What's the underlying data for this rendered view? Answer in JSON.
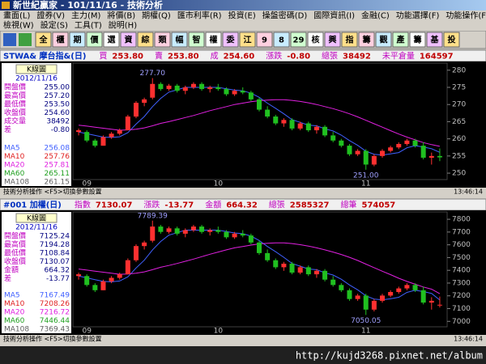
{
  "window": {
    "title": "新世紀贏家 - 101/11/16 - 技術分析"
  },
  "menu": [
    [
      "畫面(L)",
      "證券(V)",
      "主力(M)",
      "將價(B)",
      "期權(Q)",
      "匯市利率(R)",
      "投資(E)",
      "操盤密碼(D)",
      "國際資訊(I)",
      "金融(C)",
      "功能選擇(F)",
      "功能操作(F)"
    ],
    [
      "檢視(W)",
      "設定(S)",
      "工具(T)",
      "說明(H)"
    ]
  ],
  "toolbar": [
    "全",
    "櫃",
    "期",
    "價",
    "選",
    "資",
    "綜",
    "類",
    "幅",
    "智",
    "權",
    "委",
    "江",
    "9",
    "8",
    "29",
    "核",
    "興",
    "指",
    "籌",
    "觀",
    "產",
    "籌",
    "基",
    "投"
  ],
  "panels": [
    {
      "name": "STWA& 摩台指&(日)",
      "quotes": [
        [
          "買",
          "253.80"
        ],
        [
          "賣",
          "253.80"
        ],
        [
          "成",
          "254.60"
        ],
        [
          "漲跌",
          "-0.80"
        ],
        [
          "總張",
          "38492"
        ],
        [
          "未平倉量",
          "164597"
        ]
      ],
      "info": {
        "title": "K線圖",
        "date": "2012/11/16",
        "rows": [
          [
            "開盤價",
            "255.00"
          ],
          [
            "最高價",
            "257.20"
          ],
          [
            "最低價",
            "253.50"
          ],
          [
            "收盤價",
            "254.60"
          ],
          [
            "成交量",
            "38492"
          ],
          [
            "差",
            "-0.80"
          ]
        ],
        "ma_rows": [
          {
            "label": "MA5",
            "value": "256.08",
            "color": "#4060ff"
          },
          {
            "label": "MA10",
            "value": "257.76",
            "color": "#e02020"
          },
          {
            "label": "MA20",
            "value": "257.81",
            "color": "#e020e0"
          },
          {
            "label": "MA60",
            "value": "265.11",
            "color": "#20a020"
          },
          {
            "label": "MA108",
            "value": "261.15",
            "color": "#606060"
          }
        ]
      },
      "chart": {
        "type": "candlestick",
        "categories": [
          null,
          "09",
          null,
          null,
          null,
          null,
          null,
          null,
          null,
          null,
          null,
          null,
          null,
          null,
          null,
          null,
          null,
          "10",
          null,
          null,
          null,
          null,
          null,
          null,
          null,
          null,
          null,
          null,
          null,
          null,
          null,
          null,
          null,
          null,
          null,
          "11",
          null,
          null,
          null,
          null,
          null,
          null,
          null,
          null,
          null
        ],
        "candles": [
          [
            262,
            263,
            261,
            262.5
          ],
          [
            262,
            262.5,
            259,
            259.5
          ],
          [
            259.5,
            260,
            257.5,
            258
          ],
          [
            258,
            261,
            258,
            260.5
          ],
          [
            260.5,
            262,
            260,
            261.5
          ],
          [
            261.5,
            263,
            261,
            262.5
          ],
          [
            262.5,
            267,
            262.5,
            266.5
          ],
          [
            266.5,
            271,
            266,
            270.5
          ],
          [
            270.5,
            272,
            269.5,
            271.5
          ],
          [
            272,
            277.7,
            271.5,
            276
          ],
          [
            276,
            276.5,
            274,
            274.5
          ],
          [
            274.5,
            276,
            274,
            275.5
          ],
          [
            275.5,
            276,
            273.5,
            274
          ],
          [
            274,
            275.5,
            273,
            275
          ],
          [
            275,
            276.5,
            274.5,
            276
          ],
          [
            276,
            276.5,
            274,
            274.5
          ],
          [
            274.5,
            275.5,
            273.5,
            275
          ],
          [
            275,
            276,
            274,
            274.5
          ],
          [
            274.5,
            275,
            272.5,
            273
          ],
          [
            273,
            274.5,
            272.5,
            274
          ],
          [
            274,
            275,
            273,
            273.5
          ],
          [
            273.5,
            274,
            271,
            271.5
          ],
          [
            271.5,
            272,
            268,
            268.5
          ],
          [
            268.5,
            269.5,
            266,
            266.5
          ],
          [
            266.5,
            267,
            264,
            264.5
          ],
          [
            264.5,
            266,
            263.5,
            265.5
          ],
          [
            265.5,
            266,
            262.5,
            263
          ],
          [
            263,
            265,
            262.5,
            264.5
          ],
          [
            264.5,
            265,
            262,
            262.5
          ],
          [
            262.5,
            264,
            261.5,
            263.5
          ],
          [
            263.5,
            264,
            260.5,
            261
          ],
          [
            261,
            262,
            259,
            259.5
          ],
          [
            259.5,
            260,
            257.5,
            258
          ],
          [
            258,
            258.5,
            255,
            255.5
          ],
          [
            255.5,
            257,
            255,
            256.5
          ],
          [
            256.5,
            257,
            251,
            252.5
          ],
          [
            252.5,
            255.5,
            252,
            255
          ],
          [
            255,
            257,
            254.5,
            256.5
          ],
          [
            256.5,
            258,
            256,
            257.5
          ],
          [
            257.5,
            259,
            257,
            258.5
          ],
          [
            258.5,
            260,
            258,
            259.5
          ],
          [
            259.5,
            260,
            257.5,
            258
          ],
          [
            258,
            259,
            254,
            254.5
          ],
          [
            254.5,
            256,
            252.5,
            255
          ],
          [
            255,
            257.2,
            253.5,
            254.6
          ]
        ],
        "ma": [
          {
            "color": "#4060ff",
            "values": [
              262,
              261.5,
              261,
              260.5,
              260.4,
              260.6,
              261.8,
              264.3,
              266.5,
              269.4,
              271.8,
              273.6,
              274.3,
              275,
              275,
              275,
              275,
              275,
              274.6,
              274.2,
              274,
              273.3,
              272.1,
              270.4,
              268.9,
              267.3,
              265.6,
              264.8,
              264,
              263.8,
              262.9,
              262.3,
              261.1,
              259.5,
              258.1,
              256.4,
              255.5,
              255.3,
              255.6,
              256,
              257.4,
              258,
              257.6,
              257.1,
              256.08
            ]
          },
          {
            "color": "#e020e0",
            "values": [
              264,
              263.7,
              263.4,
              263.1,
              262.8,
              262.5,
              262.6,
              262.8,
              263.2,
              263.8,
              264.5,
              265,
              265.6,
              266.2,
              266.8,
              267.5,
              268.2,
              268.8,
              269.4,
              270,
              270.4,
              270.8,
              271.1,
              271.3,
              271.4,
              271.4,
              271.2,
              270.9,
              270.5,
              270,
              269.4,
              268.8,
              268.1,
              267.3,
              266.4,
              265.4,
              264.4,
              263.4,
              262.4,
              261.4,
              260.5,
              259.7,
              258.9,
              258.3,
              257.81
            ]
          }
        ],
        "ylim": [
          248.6,
          281.6
        ],
        "yticks": [
          250,
          255,
          260,
          265,
          270,
          275,
          280
        ],
        "high_label": "277.70",
        "low_label": "251.00"
      },
      "status": "技術分析操作 <F5>切換參數設置",
      "time": "13:46:14"
    },
    {
      "name": "#001 加權(日)",
      "quotes": [
        [
          "指數",
          "7130.07"
        ],
        [
          "漲跌",
          "-13.77"
        ],
        [
          "金額",
          "664.32"
        ],
        [
          "總張",
          "2585327"
        ],
        [
          "總筆",
          "574057"
        ]
      ],
      "info": {
        "title": "K線圖",
        "date": "2012/11/16",
        "rows": [
          [
            "開盤價",
            "7125.24"
          ],
          [
            "最高價",
            "7194.28"
          ],
          [
            "最低價",
            "7108.84"
          ],
          [
            "收盤價",
            "7130.07"
          ],
          [
            "金額",
            "664.32"
          ],
          [
            "差",
            "-13.77"
          ]
        ],
        "ma_rows": [
          {
            "label": "MA5",
            "value": "7167.49",
            "color": "#4060ff"
          },
          {
            "label": "MA10",
            "value": "7208.26",
            "color": "#e02020"
          },
          {
            "label": "MA20",
            "value": "7216.72",
            "color": "#e020e0"
          },
          {
            "label": "MA60",
            "value": "7446.44",
            "color": "#20a020"
          },
          {
            "label": "MA108",
            "value": "7369.43",
            "color": "#606060"
          }
        ]
      },
      "chart": {
        "type": "candlestick",
        "categories": [
          null,
          "09",
          null,
          null,
          null,
          null,
          null,
          null,
          null,
          null,
          null,
          null,
          null,
          null,
          null,
          null,
          null,
          "10",
          null,
          null,
          null,
          null,
          null,
          null,
          null,
          null,
          null,
          null,
          null,
          null,
          null,
          null,
          null,
          null,
          null,
          "11",
          null,
          null,
          null,
          null,
          null,
          null,
          null,
          null,
          null
        ],
        "candles": [
          [
            7355,
            7382,
            7327,
            7369
          ],
          [
            7355,
            7369,
            7272,
            7285
          ],
          [
            7285,
            7299,
            7230,
            7244
          ],
          [
            7244,
            7327,
            7244,
            7313
          ],
          [
            7313,
            7355,
            7299,
            7341
          ],
          [
            7341,
            7382,
            7327,
            7369
          ],
          [
            7369,
            7493,
            7369,
            7479
          ],
          [
            7479,
            7604,
            7466,
            7590
          ],
          [
            7590,
            7632,
            7563,
            7618
          ],
          [
            7632,
            7789.39,
            7618,
            7743
          ],
          [
            7743,
            7756,
            7687,
            7701
          ],
          [
            7701,
            7743,
            7687,
            7729
          ],
          [
            7729,
            7743,
            7673,
            7687
          ],
          [
            7687,
            7729,
            7659,
            7715
          ],
          [
            7715,
            7756,
            7701,
            7743
          ],
          [
            7743,
            7756,
            7687,
            7701
          ],
          [
            7701,
            7729,
            7673,
            7715
          ],
          [
            7715,
            7743,
            7687,
            7701
          ],
          [
            7701,
            7715,
            7646,
            7659
          ],
          [
            7659,
            7701,
            7646,
            7687
          ],
          [
            7687,
            7715,
            7659,
            7673
          ],
          [
            7673,
            7687,
            7604,
            7618
          ],
          [
            7618,
            7632,
            7521,
            7535
          ],
          [
            7535,
            7563,
            7466,
            7479
          ],
          [
            7479,
            7493,
            7410,
            7424
          ],
          [
            7424,
            7466,
            7396,
            7452
          ],
          [
            7452,
            7466,
            7369,
            7382
          ],
          [
            7382,
            7438,
            7369,
            7424
          ],
          [
            7424,
            7438,
            7355,
            7369
          ],
          [
            7369,
            7410,
            7341,
            7396
          ],
          [
            7396,
            7410,
            7313,
            7327
          ],
          [
            7327,
            7355,
            7272,
            7285
          ],
          [
            7285,
            7299,
            7230,
            7244
          ],
          [
            7244,
            7258,
            7161,
            7175
          ],
          [
            7175,
            7216,
            7161,
            7202
          ],
          [
            7202,
            7216,
            7050.05,
            7092
          ],
          [
            7092,
            7175,
            7078,
            7161
          ],
          [
            7161,
            7216,
            7147,
            7202
          ],
          [
            7202,
            7244,
            7189,
            7230
          ],
          [
            7230,
            7272,
            7216,
            7258
          ],
          [
            7258,
            7299,
            7244,
            7285
          ],
          [
            7285,
            7299,
            7230,
            7244
          ],
          [
            7244,
            7272,
            7133,
            7147
          ],
          [
            7147,
            7189,
            7092,
            7161
          ],
          [
            7125.24,
            7194.28,
            7108.84,
            7130.07
          ]
        ],
        "ma": [
          {
            "color": "#4060ff",
            "values": [
              7355,
              7341,
              7327,
              7313,
              7310,
              7316,
              7349,
              7418,
              7479,
              7560,
              7626,
              7676,
              7695,
              7715,
              7715,
              7715,
              7715,
              7715,
              7704,
              7693,
              7687,
              7668,
              7634,
              7587,
              7546,
              7502,
              7454,
              7432,
              7410,
              7405,
              7380,
              7363,
              7330,
              7285,
              7247,
              7200,
              7175,
              7169,
              7177,
              7189,
              7227,
              7244,
              7233,
              7219,
              7167.49
            ]
          },
          {
            "color": "#e020e0",
            "values": [
              7410,
              7402,
              7393,
              7385,
              7377,
              7369,
              7371,
              7377,
              7388,
              7405,
              7424,
              7438,
              7454,
              7471,
              7488,
              7507,
              7526,
              7543,
              7560,
              7576,
              7587,
              7598,
              7607,
              7612,
              7615,
              7615,
              7610,
              7601,
              7590,
              7576,
              7560,
              7543,
              7524,
              7502,
              7477,
              7449,
              7421,
              7393,
              7366,
              7338,
              7313,
              7291,
              7269,
              7252,
              7216.72
            ]
          }
        ],
        "ylim": [
          6970,
          7845
        ],
        "yticks": [
          7000,
          7100,
          7200,
          7300,
          7400,
          7500,
          7600,
          7700,
          7800
        ],
        "high_label": "7789.39",
        "low_label": "7050.05"
      },
      "status": "技術分析操作 <F5>切換參數設置",
      "time": "13:46:14"
    }
  ],
  "footer_url": "http://kujd3268.pixnet.net/album"
}
